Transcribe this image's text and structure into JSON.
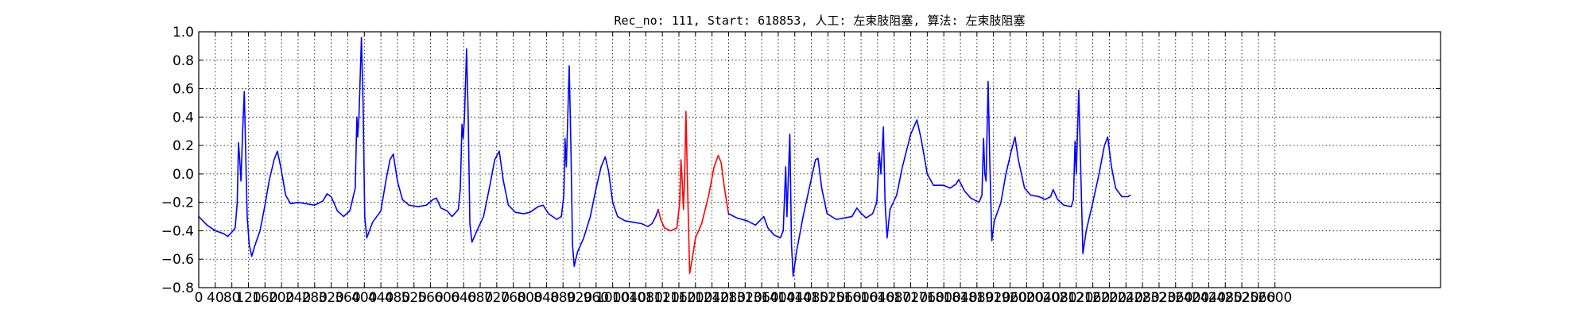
{
  "chart_data": {
    "type": "line",
    "title": "Rec_no: 111, Start: 618853, 人工: 左束肢阻塞, 算法: 左束肢阻塞",
    "xlabel": "",
    "ylabel": "",
    "xlim": [
      0,
      3000
    ],
    "ylim": [
      -0.8,
      1.0
    ],
    "grid": true,
    "x_ticks": [
      0,
      40,
      80,
      120,
      160,
      200,
      240,
      280,
      320,
      360,
      400,
      440,
      480,
      520,
      560,
      600,
      640,
      680,
      720,
      760,
      800,
      840,
      880,
      920,
      960,
      1000,
      1040,
      1080,
      1120,
      1160,
      1200,
      1240,
      1280,
      1320,
      1360,
      1400,
      1440,
      1480,
      1520,
      1560,
      1600,
      1640,
      1680,
      1720,
      1760,
      1800,
      1840,
      1880,
      1920,
      1960,
      2000,
      2040,
      2080,
      2120,
      2160,
      2200,
      2240,
      2280,
      2320,
      2360,
      2400,
      2440,
      2480,
      2520,
      2560,
      2600
    ],
    "x_tick_labels": [
      "0",
      "40",
      "80",
      "120",
      "160",
      "200",
      "240",
      "280",
      "320",
      "360",
      "400",
      "440",
      "480",
      "520",
      "560",
      "600",
      "640",
      "680",
      "720",
      "760",
      "800",
      "840",
      "880",
      "920",
      "960",
      "1000",
      "1040",
      "1080",
      "1120",
      "1160",
      "1200",
      "1240",
      "1280",
      "1320",
      "1360",
      "1400",
      "1440",
      "1480",
      "1520",
      "1560",
      "1600",
      "1640",
      "1680",
      "1720",
      "1760",
      "1800",
      "1840",
      "1880",
      "1920",
      "1960",
      "2000",
      "2040",
      "2080",
      "2120",
      "2160",
      "2200",
      "2240",
      "2280",
      "2320",
      "2360",
      "2400",
      "2440",
      "2480",
      "2520",
      "2560",
      "2600"
    ],
    "y_ticks": [
      -0.8,
      -0.6,
      -0.4,
      -0.2,
      0.0,
      0.2,
      0.4,
      0.6,
      0.8,
      1.0
    ],
    "y_tick_labels": [
      "−0.8",
      "−0.6",
      "−0.4",
      "−0.2",
      "0.0",
      "0.2",
      "0.4",
      "0.6",
      "0.8",
      "1.0"
    ],
    "series": [
      {
        "color": "#0000ff",
        "points": [
          [
            0,
            -0.3
          ],
          [
            20,
            -0.36
          ],
          [
            40,
            -0.4
          ],
          [
            60,
            -0.42
          ],
          [
            70,
            -0.44
          ],
          [
            80,
            -0.41
          ],
          [
            88,
            -0.38
          ],
          [
            93,
            -0.2
          ],
          [
            96,
            0.22
          ],
          [
            99,
            0.1
          ],
          [
            102,
            -0.05
          ],
          [
            106,
            0.3
          ],
          [
            110,
            0.58
          ],
          [
            113,
            0.2
          ],
          [
            117,
            -0.3
          ],
          [
            122,
            -0.5
          ],
          [
            128,
            -0.58
          ],
          [
            136,
            -0.5
          ],
          [
            148,
            -0.4
          ],
          [
            160,
            -0.22
          ],
          [
            170,
            -0.05
          ],
          [
            182,
            0.1
          ],
          [
            190,
            0.16
          ],
          [
            198,
            0.05
          ],
          [
            210,
            -0.15
          ],
          [
            222,
            -0.21
          ],
          [
            240,
            -0.2
          ],
          [
            260,
            -0.21
          ],
          [
            280,
            -0.22
          ],
          [
            300,
            -0.19
          ],
          [
            310,
            -0.14
          ],
          [
            320,
            -0.16
          ],
          [
            335,
            -0.26
          ],
          [
            350,
            -0.3
          ],
          [
            365,
            -0.26
          ],
          [
            378,
            -0.1
          ],
          [
            382,
            0.4
          ],
          [
            384,
            0.26
          ],
          [
            387,
            0.4
          ],
          [
            393,
            0.96
          ],
          [
            397,
            0.5
          ],
          [
            401,
            -0.3
          ],
          [
            406,
            -0.45
          ],
          [
            420,
            -0.34
          ],
          [
            440,
            -0.26
          ],
          [
            452,
            -0.05
          ],
          [
            462,
            0.1
          ],
          [
            470,
            0.14
          ],
          [
            480,
            -0.05
          ],
          [
            492,
            -0.18
          ],
          [
            508,
            -0.22
          ],
          [
            530,
            -0.23
          ],
          [
            550,
            -0.22
          ],
          [
            566,
            -0.18
          ],
          [
            574,
            -0.17
          ],
          [
            585,
            -0.24
          ],
          [
            600,
            -0.26
          ],
          [
            612,
            -0.3
          ],
          [
            627,
            -0.25
          ],
          [
            632,
            -0.1
          ],
          [
            636,
            0.35
          ],
          [
            639,
            0.25
          ],
          [
            642,
            0.4
          ],
          [
            647,
            0.88
          ],
          [
            651,
            0.4
          ],
          [
            655,
            -0.35
          ],
          [
            660,
            -0.48
          ],
          [
            672,
            -0.4
          ],
          [
            688,
            -0.3
          ],
          [
            702,
            -0.1
          ],
          [
            715,
            0.1
          ],
          [
            726,
            0.16
          ],
          [
            736,
            -0.05
          ],
          [
            748,
            -0.22
          ],
          [
            765,
            -0.27
          ],
          [
            785,
            -0.28
          ],
          [
            800,
            -0.27
          ],
          [
            820,
            -0.23
          ],
          [
            832,
            -0.22
          ],
          [
            845,
            -0.28
          ],
          [
            865,
            -0.32
          ],
          [
            876,
            -0.3
          ],
          [
            882,
            -0.15
          ],
          [
            885,
            0.25
          ],
          [
            888,
            0.05
          ],
          [
            892,
            0.45
          ],
          [
            895,
            0.76
          ],
          [
            899,
            0.2
          ],
          [
            903,
            -0.5
          ],
          [
            907,
            -0.65
          ],
          [
            915,
            -0.55
          ],
          [
            930,
            -0.45
          ],
          [
            946,
            -0.3
          ],
          [
            960,
            -0.1
          ],
          [
            972,
            0.05
          ],
          [
            982,
            0.12
          ],
          [
            990,
            0.02
          ],
          [
            1000,
            -0.2
          ],
          [
            1012,
            -0.3
          ],
          [
            1030,
            -0.33
          ],
          [
            1050,
            -0.34
          ],
          [
            1070,
            -0.35
          ],
          [
            1085,
            -0.37
          ],
          [
            1095,
            -0.35
          ],
          [
            1104,
            -0.3
          ],
          [
            1110,
            -0.25
          ]
        ]
      },
      {
        "color": "#ff0000",
        "points": [
          [
            1110,
            -0.25
          ],
          [
            1116,
            -0.32
          ],
          [
            1125,
            -0.38
          ],
          [
            1140,
            -0.4
          ],
          [
            1155,
            -0.38
          ],
          [
            1162,
            -0.2
          ],
          [
            1165,
            0.1
          ],
          [
            1168,
            -0.05
          ],
          [
            1171,
            -0.25
          ],
          [
            1174,
            0.0
          ],
          [
            1177,
            0.44
          ],
          [
            1181,
            -0.1
          ],
          [
            1186,
            -0.7
          ],
          [
            1192,
            -0.6
          ],
          [
            1200,
            -0.45
          ],
          [
            1215,
            -0.35
          ],
          [
            1232,
            -0.15
          ],
          [
            1245,
            0.05
          ],
          [
            1255,
            0.13
          ],
          [
            1262,
            0.08
          ],
          [
            1270,
            -0.1
          ],
          [
            1280,
            -0.28
          ]
        ]
      },
      {
        "color": "#0000ff",
        "points": [
          [
            1280,
            -0.28
          ],
          [
            1300,
            -0.31
          ],
          [
            1325,
            -0.33
          ],
          [
            1345,
            -0.36
          ],
          [
            1365,
            -0.3
          ],
          [
            1375,
            -0.38
          ],
          [
            1390,
            -0.43
          ],
          [
            1405,
            -0.45
          ],
          [
            1412,
            -0.4
          ],
          [
            1418,
            0.05
          ],
          [
            1421,
            -0.3
          ],
          [
            1428,
            0.28
          ],
          [
            1432,
            -0.5
          ],
          [
            1436,
            -0.72
          ],
          [
            1444,
            -0.55
          ],
          [
            1460,
            -0.3
          ],
          [
            1475,
            -0.1
          ],
          [
            1490,
            0.1
          ],
          [
            1496,
            0.11
          ],
          [
            1505,
            -0.1
          ],
          [
            1518,
            -0.28
          ],
          [
            1540,
            -0.32
          ],
          [
            1560,
            -0.31
          ],
          [
            1578,
            -0.3
          ],
          [
            1590,
            -0.24
          ],
          [
            1598,
            -0.27
          ],
          [
            1612,
            -0.31
          ],
          [
            1628,
            -0.28
          ],
          [
            1638,
            -0.2
          ],
          [
            1644,
            0.15
          ],
          [
            1648,
            0.0
          ],
          [
            1654,
            0.33
          ],
          [
            1658,
            -0.2
          ],
          [
            1663,
            -0.45
          ],
          [
            1670,
            -0.25
          ],
          [
            1686,
            -0.15
          ],
          [
            1700,
            0.05
          ],
          [
            1720,
            0.28
          ],
          [
            1735,
            0.38
          ],
          [
            1745,
            0.25
          ],
          [
            1760,
            0.0
          ],
          [
            1775,
            -0.08
          ],
          [
            1800,
            -0.08
          ],
          [
            1815,
            -0.1
          ],
          [
            1830,
            -0.07
          ],
          [
            1836,
            -0.04
          ],
          [
            1850,
            -0.12
          ],
          [
            1865,
            -0.17
          ],
          [
            1885,
            -0.2
          ],
          [
            1892,
            -0.15
          ],
          [
            1896,
            0.25
          ],
          [
            1899,
            0.0
          ],
          [
            1902,
            -0.05
          ],
          [
            1907,
            0.65
          ],
          [
            1911,
            0.1
          ],
          [
            1916,
            -0.47
          ],
          [
            1922,
            -0.33
          ],
          [
            1938,
            -0.2
          ],
          [
            1950,
            0.0
          ],
          [
            1962,
            0.15
          ],
          [
            1972,
            0.26
          ],
          [
            1980,
            0.1
          ],
          [
            1995,
            -0.1
          ],
          [
            2010,
            -0.15
          ],
          [
            2030,
            -0.16
          ],
          [
            2045,
            -0.18
          ],
          [
            2058,
            -0.16
          ],
          [
            2064,
            -0.11
          ],
          [
            2075,
            -0.18
          ],
          [
            2090,
            -0.22
          ],
          [
            2108,
            -0.23
          ],
          [
            2113,
            -0.18
          ],
          [
            2117,
            0.23
          ],
          [
            2120,
            0.0
          ],
          [
            2126,
            0.59
          ],
          [
            2131,
            0.0
          ],
          [
            2136,
            -0.56
          ],
          [
            2144,
            -0.4
          ],
          [
            2160,
            -0.2
          ],
          [
            2175,
            0.0
          ],
          [
            2188,
            0.2
          ],
          [
            2196,
            0.26
          ],
          [
            2205,
            0.05
          ],
          [
            2215,
            -0.1
          ],
          [
            2230,
            -0.16
          ],
          [
            2245,
            -0.16
          ],
          [
            2250,
            -0.15
          ]
        ]
      }
    ]
  }
}
